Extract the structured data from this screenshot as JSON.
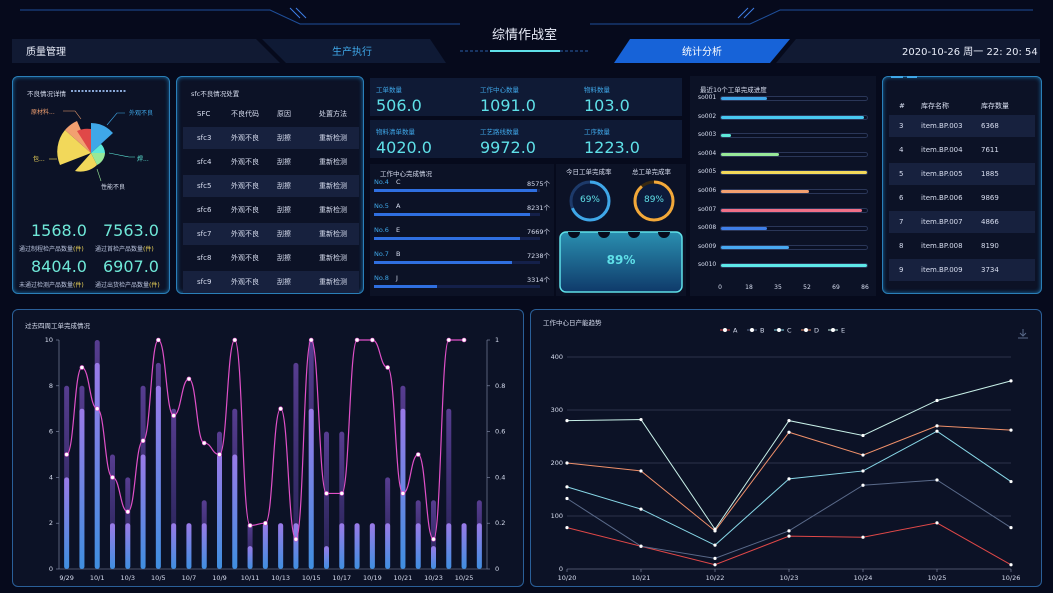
{
  "header": {
    "title": "综情作战室",
    "tabs": [
      {
        "label": "质量管理"
      },
      {
        "label": "生产执行"
      },
      {
        "label": "统计分析",
        "active": true
      }
    ],
    "datetime": "2020-10-26 周一 22: 20: 54"
  },
  "defect_panel": {
    "title": "不良情况详情",
    "labels": [
      "原材料...",
      "外观不良",
      "包...",
      "焊...",
      "性能不良"
    ],
    "stats": [
      {
        "value": "1568.0",
        "label": "通过制程检产品数量",
        "unit": "(件)"
      },
      {
        "value": "7563.0",
        "label": "通过首检产品数量",
        "unit": "(件)"
      },
      {
        "value": "8404.0",
        "label": "未通过检测产品数量",
        "unit": "(件)"
      },
      {
        "value": "6907.0",
        "label": "通过出货检产品数量",
        "unit": "(件)"
      }
    ]
  },
  "sfc_panel": {
    "title": "sfc不良情况处置",
    "headers": [
      "SFC",
      "不良代码",
      "原因",
      "处置方法"
    ],
    "rows": [
      [
        "sfc3",
        "外观不良",
        "刮擦",
        "重新检测"
      ],
      [
        "sfc4",
        "外观不良",
        "刮擦",
        "重新检测"
      ],
      [
        "sfc5",
        "外观不良",
        "刮擦",
        "重新检测"
      ],
      [
        "sfc6",
        "外观不良",
        "刮擦",
        "重新检测"
      ],
      [
        "sfc7",
        "外观不良",
        "刮擦",
        "重新检测"
      ],
      [
        "sfc8",
        "外观不良",
        "刮擦",
        "重新检测"
      ],
      [
        "sfc9",
        "外观不良",
        "刮擦",
        "重新检测"
      ]
    ]
  },
  "stats": [
    {
      "label": "工单数量",
      "value": "506.0"
    },
    {
      "label": "工作中心数量",
      "value": "1091.0"
    },
    {
      "label": "物料数量",
      "value": "103.0"
    },
    {
      "label": "物料清单数量",
      "value": "4020.0"
    },
    {
      "label": "工艺路线数量",
      "value": "9972.0"
    },
    {
      "label": "工序数量",
      "value": "1223.0"
    }
  ],
  "wc_completion": {
    "title": "工作中心完成情况",
    "items": [
      {
        "no": "No.4",
        "name": "C",
        "value": "8575个",
        "pct": 0.98
      },
      {
        "no": "No.5",
        "name": "A",
        "value": "8231个",
        "pct": 0.94
      },
      {
        "no": "No.6",
        "name": "E",
        "value": "7669个",
        "pct": 0.88
      },
      {
        "no": "No.7",
        "name": "B",
        "value": "7238个",
        "pct": 0.83
      },
      {
        "no": "No.8",
        "name": "J",
        "value": "3314个",
        "pct": 0.38
      }
    ]
  },
  "rates": {
    "today_label": "今日工单完成率",
    "today_value": "69%",
    "total_label": "总工单完成率",
    "total_value": "89%",
    "tank_value": "89%"
  },
  "progress10": {
    "title": "最近10个工单完成进度",
    "axis": [
      "0",
      "18",
      "35",
      "52",
      "69",
      "86"
    ],
    "items": [
      {
        "name": "so001",
        "value": 27,
        "color": "#3fa7e8"
      },
      {
        "name": "so002",
        "value": 84,
        "color": "#48c8f0"
      },
      {
        "name": "so003",
        "value": 6,
        "color": "#5ee8d8"
      },
      {
        "name": "so004",
        "value": 34,
        "color": "#98e898"
      },
      {
        "name": "so005",
        "value": 86,
        "color": "#f2d85a"
      },
      {
        "name": "so006",
        "value": 52,
        "color": "#f2a070"
      },
      {
        "name": "so007",
        "value": 83,
        "color": "#f07088"
      },
      {
        "name": "so008",
        "value": 27,
        "color": "#3f7fe8"
      },
      {
        "name": "so009",
        "value": 40,
        "color": "#48a8f0"
      },
      {
        "name": "so010",
        "value": 86,
        "color": "#5ee8e8"
      }
    ]
  },
  "inventory": {
    "headers": [
      "#",
      "库存名称",
      "库存数量"
    ],
    "rows": [
      [
        "3",
        "item.BP.003",
        "6368"
      ],
      [
        "4",
        "item.BP.004",
        "7611"
      ],
      [
        "5",
        "item.BP.005",
        "1885"
      ],
      [
        "6",
        "item.BP.006",
        "9869"
      ],
      [
        "7",
        "item.BP.007",
        "4866"
      ],
      [
        "8",
        "item.BP.008",
        "8190"
      ],
      [
        "9",
        "item.BP.009",
        "3734"
      ]
    ]
  },
  "chart_data": [
    {
      "type": "bar",
      "title": "过去四周工单完成情况",
      "categories": [
        "9/29",
        "9/30",
        "10/1",
        "10/2",
        "10/3",
        "10/4",
        "10/5",
        "10/6",
        "10/7",
        "10/8",
        "10/9",
        "10/10",
        "10/11",
        "10/12",
        "10/13",
        "10/14",
        "10/15",
        "10/16",
        "10/17",
        "10/18",
        "10/19",
        "10/20",
        "10/21",
        "10/22",
        "10/23",
        "10/24",
        "10/25",
        "10/26"
      ],
      "x_tick_labels": [
        "9/29",
        "10/1",
        "10/3",
        "10/5",
        "10/7",
        "10/9",
        "10/11",
        "10/13",
        "10/15",
        "10/17",
        "10/19",
        "10/21",
        "10/23",
        "10/25"
      ],
      "ylim": [
        0,
        10
      ],
      "y_ticks": [
        "0",
        "2",
        "4",
        "6",
        "8",
        "10"
      ],
      "y2lim": [
        0,
        1
      ],
      "y2_ticks": [
        "0",
        "0.2",
        "0.4",
        "0.6",
        "0.8",
        "1"
      ],
      "series": [
        {
          "kind": "bar-back",
          "values": [
            8,
            8,
            10,
            5,
            4,
            8,
            9,
            7,
            2,
            3,
            6,
            7,
            2,
            2,
            2,
            9,
            10,
            6,
            6,
            2,
            2,
            4,
            8,
            3,
            3,
            7,
            2,
            3
          ]
        },
        {
          "kind": "bar-front",
          "values": [
            4,
            7,
            9,
            2,
            2,
            5,
            8,
            2,
            2,
            2,
            5,
            5,
            1,
            2,
            2,
            2,
            7,
            1,
            2,
            2,
            2,
            2,
            7,
            2,
            1,
            2,
            2,
            2
          ]
        },
        {
          "kind": "line",
          "values": [
            0.5,
            0.88,
            0.7,
            0.4,
            0.25,
            0.56,
            1.0,
            0.67,
            0.83,
            0.55,
            0.5,
            1.0,
            0.19,
            0.2,
            0.7,
            0.13,
            1.0,
            0.33,
            0.33,
            1.0,
            1.0,
            0.88,
            0.33,
            0.5,
            0.13,
            1.0,
            1.0,
            null
          ]
        }
      ]
    },
    {
      "type": "line",
      "title": "工作中心日产能趋势",
      "legend": [
        "A",
        "B",
        "C",
        "D",
        "E"
      ],
      "categories": [
        "10/20",
        "10/21",
        "10/22",
        "10/23",
        "10/24",
        "10/25",
        "10/26"
      ],
      "ylim": [
        0,
        400
      ],
      "y_ticks": [
        "0",
        "100",
        "200",
        "300",
        "400"
      ],
      "series": [
        {
          "name": "A",
          "color": "#e04848",
          "values": [
            78,
            43,
            8,
            62,
            60,
            87,
            8
          ]
        },
        {
          "name": "B",
          "color": "#5a6a8a",
          "values": [
            133,
            43,
            20,
            72,
            158,
            168,
            78
          ]
        },
        {
          "name": "C",
          "color": "#88d8e8",
          "values": [
            155,
            113,
            45,
            170,
            185,
            260,
            165
          ]
        },
        {
          "name": "D",
          "color": "#f0906a",
          "values": [
            200,
            185,
            72,
            258,
            215,
            270,
            262
          ]
        },
        {
          "name": "E",
          "color": "#c8f0e8",
          "values": [
            280,
            282,
            75,
            280,
            252,
            318,
            355
          ]
        }
      ]
    }
  ]
}
